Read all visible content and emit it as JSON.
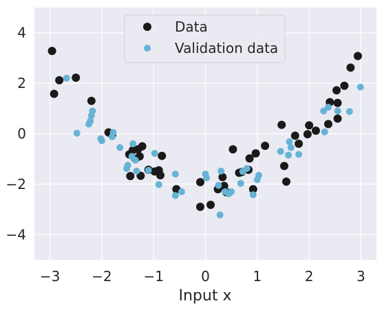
{
  "chart_data": {
    "type": "scatter",
    "xlabel": "Input x",
    "ylabel": "",
    "xlim": [
      -3.3,
      3.3
    ],
    "ylim": [
      -5,
      5
    ],
    "x_ticks": [
      -3,
      -2,
      -1,
      0,
      1,
      2,
      3
    ],
    "y_ticks": [
      -4,
      -2,
      0,
      2,
      4
    ],
    "x_tick_labels": [
      "−3",
      "−2",
      "−1",
      "0",
      "1",
      "2",
      "3"
    ],
    "y_tick_labels": [
      "−4",
      "−2",
      "0",
      "2",
      "4"
    ],
    "grid": true,
    "legend_position": "top-center",
    "background": "#eaeaf2",
    "series": [
      {
        "name": "Data",
        "color": "#1a1a1a",
        "points": [
          [
            -2.96,
            3.28
          ],
          [
            -2.92,
            1.58
          ],
          [
            -2.82,
            2.12
          ],
          [
            -2.5,
            2.22
          ],
          [
            -2.2,
            1.3
          ],
          [
            -1.87,
            0.05
          ],
          [
            -1.8,
            -0.05
          ],
          [
            -1.47,
            -0.82
          ],
          [
            -1.45,
            -1.68
          ],
          [
            -1.4,
            -0.65
          ],
          [
            -1.35,
            -1.0
          ],
          [
            -1.3,
            -0.62
          ],
          [
            -1.27,
            -0.9
          ],
          [
            -1.25,
            -1.67
          ],
          [
            -1.22,
            -0.5
          ],
          [
            -1.1,
            -1.43
          ],
          [
            -0.98,
            -1.5
          ],
          [
            -0.9,
            -1.45
          ],
          [
            -0.87,
            -1.65
          ],
          [
            -0.84,
            -0.88
          ],
          [
            -0.56,
            -2.2
          ],
          [
            -0.1,
            -1.92
          ],
          [
            -0.1,
            -2.9
          ],
          [
            0.1,
            -2.82
          ],
          [
            0.24,
            -2.2
          ],
          [
            0.33,
            -1.72
          ],
          [
            0.36,
            -2.07
          ],
          [
            0.4,
            -2.32
          ],
          [
            0.53,
            -0.62
          ],
          [
            0.65,
            -1.55
          ],
          [
            0.7,
            -1.52
          ],
          [
            0.83,
            -1.43
          ],
          [
            0.85,
            -0.98
          ],
          [
            0.92,
            -2.2
          ],
          [
            0.97,
            -0.78
          ],
          [
            1.15,
            -0.48
          ],
          [
            1.47,
            0.35
          ],
          [
            1.52,
            -1.28
          ],
          [
            1.56,
            -1.9
          ],
          [
            1.73,
            -0.08
          ],
          [
            1.8,
            -0.4
          ],
          [
            1.97,
            -0.02
          ],
          [
            2.0,
            0.33
          ],
          [
            2.13,
            0.12
          ],
          [
            2.37,
            0.38
          ],
          [
            2.4,
            1.25
          ],
          [
            2.53,
            1.72
          ],
          [
            2.55,
            1.22
          ],
          [
            2.55,
            0.6
          ],
          [
            2.68,
            1.9
          ],
          [
            2.8,
            2.62
          ],
          [
            2.94,
            3.08
          ]
        ]
      },
      {
        "name": "Validation data",
        "color": "#67b3d5",
        "points": [
          [
            -2.68,
            2.2
          ],
          [
            -2.48,
            0.02
          ],
          [
            -2.25,
            0.38
          ],
          [
            -2.22,
            0.5
          ],
          [
            -2.2,
            0.72
          ],
          [
            -2.18,
            0.9
          ],
          [
            -2.02,
            -0.2
          ],
          [
            -2.0,
            -0.28
          ],
          [
            -1.8,
            -0.12
          ],
          [
            -1.78,
            0.05
          ],
          [
            -1.65,
            -0.55
          ],
          [
            -1.52,
            -1.38
          ],
          [
            -1.5,
            -1.25
          ],
          [
            -1.42,
            -0.9
          ],
          [
            -1.4,
            -0.4
          ],
          [
            -1.35,
            -1.05
          ],
          [
            -1.33,
            -1.48
          ],
          [
            -1.1,
            -1.45
          ],
          [
            -0.98,
            -0.78
          ],
          [
            -0.9,
            -2.02
          ],
          [
            -0.58,
            -1.6
          ],
          [
            -0.58,
            -2.45
          ],
          [
            -0.46,
            -2.3
          ],
          [
            0.0,
            -1.6
          ],
          [
            0.02,
            -1.75
          ],
          [
            0.25,
            -2.05
          ],
          [
            0.28,
            -3.22
          ],
          [
            0.3,
            -1.48
          ],
          [
            0.38,
            -2.3
          ],
          [
            0.45,
            -2.38
          ],
          [
            0.5,
            -2.3
          ],
          [
            0.68,
            -1.97
          ],
          [
            0.72,
            -1.5
          ],
          [
            0.8,
            -1.38
          ],
          [
            0.92,
            -2.42
          ],
          [
            1.0,
            -1.82
          ],
          [
            1.03,
            -1.65
          ],
          [
            1.45,
            -0.7
          ],
          [
            1.6,
            -0.85
          ],
          [
            1.62,
            -0.32
          ],
          [
            1.65,
            -0.55
          ],
          [
            1.8,
            -0.82
          ],
          [
            2.28,
            0.9
          ],
          [
            2.3,
            0.07
          ],
          [
            2.37,
            1.05
          ],
          [
            2.55,
            0.9
          ],
          [
            2.78,
            0.88
          ],
          [
            2.99,
            1.85
          ]
        ]
      }
    ]
  }
}
